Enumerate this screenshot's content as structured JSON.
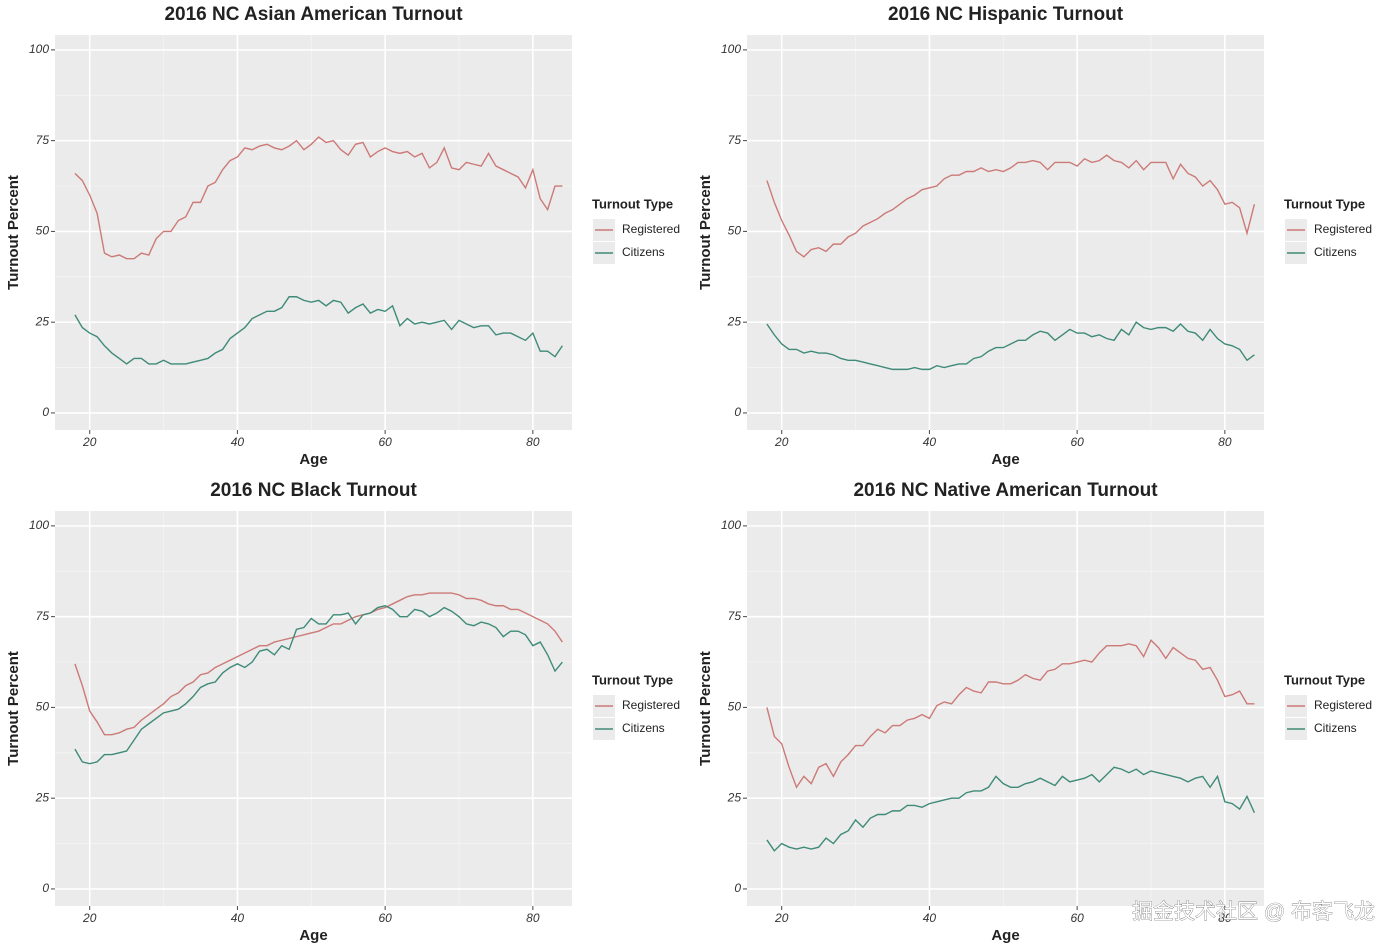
{
  "chart_data": [
    {
      "type": "line",
      "title": "2016 NC Asian American Turnout",
      "x_label": "Age",
      "y_label": "Turnout Percent",
      "legend_title": "Turnout Type",
      "xlim": [
        15.3,
        85.3
      ],
      "ylim": [
        -4.7,
        104.1
      ],
      "xticks": [
        20,
        40,
        60,
        80
      ],
      "yticks": [
        0,
        25,
        50,
        75,
        100
      ],
      "grid": true,
      "x": [
        18,
        19,
        20,
        21,
        22,
        23,
        24,
        25,
        26,
        27,
        28,
        29,
        30,
        31,
        32,
        33,
        34,
        35,
        36,
        37,
        38,
        39,
        40,
        41,
        42,
        43,
        44,
        45,
        46,
        47,
        48,
        49,
        50,
        51,
        52,
        53,
        54,
        55,
        56,
        57,
        58,
        59,
        60,
        61,
        62,
        63,
        64,
        65,
        66,
        67,
        68,
        69,
        70,
        71,
        72,
        73,
        74,
        75,
        76,
        77,
        78,
        79,
        80,
        81,
        82,
        83,
        84
      ],
      "series": [
        {
          "name": "Registered",
          "color": "#cc7a77",
          "values": [
            66,
            64,
            60,
            55,
            44,
            43,
            43.5,
            42.5,
            42.5,
            44,
            43.5,
            48,
            50,
            50,
            53,
            54,
            58,
            58,
            62.5,
            63.5,
            67,
            69.5,
            70.5,
            73,
            72.5,
            73.5,
            74,
            73,
            72.5,
            73.5,
            75,
            72.5,
            74,
            76,
            74.5,
            75,
            72.5,
            71,
            74,
            74.5,
            70.5,
            72,
            73,
            72,
            71.5,
            72,
            70.5,
            71.5,
            67.5,
            69,
            73,
            67.5,
            67,
            69,
            68.5,
            68,
            71.5,
            68,
            67,
            66,
            65,
            62,
            67,
            59,
            56,
            62.5,
            62.5
          ]
        },
        {
          "name": "Citizens",
          "color": "#3f8a78",
          "values": [
            27,
            23.5,
            22,
            21,
            18.5,
            16.5,
            15,
            13.5,
            15,
            15,
            13.5,
            13.5,
            14.5,
            13.5,
            13.5,
            13.5,
            14,
            14.5,
            15,
            16.5,
            17.5,
            20.5,
            22,
            23.5,
            26,
            27,
            28,
            28,
            29,
            32,
            32,
            31,
            30.5,
            31,
            29.5,
            31,
            30.5,
            27.5,
            29,
            30,
            27.5,
            28.5,
            28,
            29.5,
            24,
            26,
            24.5,
            25,
            24.5,
            25,
            25.5,
            23,
            25.5,
            24.5,
            23.5,
            24,
            24,
            21.5,
            22,
            22,
            21,
            20,
            22,
            17,
            17,
            15.5,
            18.5
          ]
        }
      ]
    },
    {
      "type": "line",
      "title": "2016 NC Hispanic Turnout",
      "x_label": "Age",
      "y_label": "Turnout Percent",
      "legend_title": "Turnout Type",
      "xlim": [
        15.3,
        85.3
      ],
      "ylim": [
        -4.7,
        104.1
      ],
      "xticks": [
        20,
        40,
        60,
        80
      ],
      "yticks": [
        0,
        25,
        50,
        75,
        100
      ],
      "grid": true,
      "x": [
        18,
        19,
        20,
        21,
        22,
        23,
        24,
        25,
        26,
        27,
        28,
        29,
        30,
        31,
        32,
        33,
        34,
        35,
        36,
        37,
        38,
        39,
        40,
        41,
        42,
        43,
        44,
        45,
        46,
        47,
        48,
        49,
        50,
        51,
        52,
        53,
        54,
        55,
        56,
        57,
        58,
        59,
        60,
        61,
        62,
        63,
        64,
        65,
        66,
        67,
        68,
        69,
        70,
        71,
        72,
        73,
        74,
        75,
        76,
        77,
        78,
        79,
        80,
        81,
        82,
        83,
        84
      ],
      "series": [
        {
          "name": "Registered",
          "color": "#cc7a77",
          "values": [
            64,
            58,
            53,
            49,
            44.5,
            43,
            45,
            45.5,
            44.5,
            46.5,
            46.5,
            48.5,
            49.5,
            51.5,
            52.5,
            53.5,
            55,
            56,
            57.5,
            59,
            60,
            61.5,
            62,
            62.5,
            64.5,
            65.5,
            65.5,
            66.5,
            66.5,
            67.5,
            66.5,
            67,
            66.5,
            67.5,
            69,
            69,
            69.5,
            69,
            67,
            69,
            69,
            69,
            68,
            70,
            69,
            69.5,
            71,
            69.5,
            69,
            67.5,
            69.5,
            67,
            69,
            69,
            69,
            64.5,
            68.5,
            66,
            65,
            62.5,
            64,
            61.5,
            57.5,
            58,
            56.5,
            49.5,
            57.5
          ]
        },
        {
          "name": "Citizens",
          "color": "#3f8a78",
          "values": [
            24.5,
            21.5,
            19,
            17.5,
            17.5,
            16.5,
            17,
            16.5,
            16.5,
            16,
            15,
            14.5,
            14.5,
            14,
            13.5,
            13,
            12.5,
            12,
            12,
            12,
            12.5,
            12,
            12,
            13,
            12.5,
            13,
            13.5,
            13.5,
            15,
            15.5,
            17,
            18,
            18,
            19,
            20,
            20,
            21.5,
            22.5,
            22,
            20,
            21.5,
            23,
            22,
            22,
            21,
            21.5,
            20.5,
            20,
            23,
            21.5,
            25,
            23.5,
            23,
            23.5,
            23.5,
            22.5,
            24.5,
            22.5,
            22,
            20,
            23,
            20.5,
            19,
            18.5,
            17.5,
            14.5,
            16
          ]
        }
      ]
    },
    {
      "type": "line",
      "title": "2016 NC Black Turnout",
      "x_label": "Age",
      "y_label": "Turnout Percent",
      "legend_title": "Turnout Type",
      "xlim": [
        15.3,
        85.3
      ],
      "ylim": [
        -4.7,
        104.1
      ],
      "xticks": [
        20,
        40,
        60,
        80
      ],
      "yticks": [
        0,
        25,
        50,
        75,
        100
      ],
      "grid": true,
      "x": [
        18,
        19,
        20,
        21,
        22,
        23,
        24,
        25,
        26,
        27,
        28,
        29,
        30,
        31,
        32,
        33,
        34,
        35,
        36,
        37,
        38,
        39,
        40,
        41,
        42,
        43,
        44,
        45,
        46,
        47,
        48,
        49,
        50,
        51,
        52,
        53,
        54,
        55,
        56,
        57,
        58,
        59,
        60,
        61,
        62,
        63,
        64,
        65,
        66,
        67,
        68,
        69,
        70,
        71,
        72,
        73,
        74,
        75,
        76,
        77,
        78,
        79,
        80,
        81,
        82,
        83,
        84
      ],
      "series": [
        {
          "name": "Registered",
          "color": "#cc7a77",
          "values": [
            62,
            56,
            49,
            46,
            42.5,
            42.5,
            43,
            44,
            44.5,
            46.5,
            48,
            49.5,
            51,
            53,
            54,
            56,
            57,
            59,
            59.5,
            61,
            62,
            63,
            64,
            65,
            66,
            67,
            67,
            68,
            68.5,
            69,
            69.5,
            70,
            70.5,
            71,
            72,
            73,
            73,
            74,
            75,
            75.5,
            76,
            77,
            77.5,
            78.5,
            79.5,
            80.5,
            81,
            81,
            81.5,
            81.5,
            81.5,
            81.5,
            81,
            80,
            80,
            79.5,
            78.5,
            78,
            78,
            77,
            77,
            76,
            75,
            74,
            73,
            71,
            68
          ]
        },
        {
          "name": "Citizens",
          "color": "#3f8a78",
          "values": [
            38.5,
            35,
            34.5,
            35,
            37,
            37,
            37.5,
            38,
            41,
            44,
            45.5,
            47,
            48.5,
            49,
            49.5,
            51,
            53,
            55.5,
            56.5,
            57,
            59.5,
            61,
            62,
            61,
            62.5,
            65.5,
            66,
            64.5,
            67,
            66,
            71.5,
            72,
            74.5,
            73,
            73,
            75.5,
            75.5,
            76,
            73,
            75.5,
            76,
            77.5,
            78,
            77,
            75,
            75,
            77,
            76.5,
            75,
            76,
            77.5,
            76.5,
            75,
            73,
            72.5,
            73.5,
            73,
            72,
            69.5,
            71,
            71,
            70,
            67,
            68,
            64.5,
            60,
            62.5
          ]
        }
      ]
    },
    {
      "type": "line",
      "title": "2016 NC Native American Turnout",
      "x_label": "Age",
      "y_label": "Turnout Percent",
      "legend_title": "Turnout Type",
      "xlim": [
        15.3,
        85.3
      ],
      "ylim": [
        -4.7,
        104.1
      ],
      "xticks": [
        20,
        40,
        60,
        80
      ],
      "yticks": [
        0,
        25,
        50,
        75,
        100
      ],
      "grid": true,
      "x": [
        18,
        19,
        20,
        21,
        22,
        23,
        24,
        25,
        26,
        27,
        28,
        29,
        30,
        31,
        32,
        33,
        34,
        35,
        36,
        37,
        38,
        39,
        40,
        41,
        42,
        43,
        44,
        45,
        46,
        47,
        48,
        49,
        50,
        51,
        52,
        53,
        54,
        55,
        56,
        57,
        58,
        59,
        60,
        61,
        62,
        63,
        64,
        65,
        66,
        67,
        68,
        69,
        70,
        71,
        72,
        73,
        74,
        75,
        76,
        77,
        78,
        79,
        80,
        81,
        82,
        83,
        84
      ],
      "series": [
        {
          "name": "Registered",
          "color": "#cc7a77",
          "values": [
            50,
            42,
            40,
            33.5,
            28,
            31,
            29,
            33.5,
            34.5,
            31,
            35,
            37,
            39.5,
            39.5,
            42,
            44,
            43,
            45,
            45,
            46.5,
            47,
            48,
            47,
            50.5,
            51.5,
            51,
            53.5,
            55.5,
            54.5,
            54,
            57,
            57,
            56.5,
            56.5,
            57.5,
            59,
            58,
            57.5,
            60,
            60.5,
            62,
            62,
            62.5,
            63,
            62.5,
            65,
            67,
            67,
            67,
            67.5,
            67,
            64,
            68.5,
            66.5,
            63.5,
            66.5,
            65,
            63.5,
            63,
            60.5,
            61,
            57.5,
            53,
            53.5,
            54.5,
            51,
            51
          ]
        },
        {
          "name": "Citizens",
          "color": "#3f8a78",
          "values": [
            13.5,
            10.5,
            12.5,
            11.5,
            11,
            11.5,
            11,
            11.5,
            14,
            12.5,
            15,
            16,
            19,
            17,
            19.5,
            20.5,
            20.5,
            21.5,
            21.5,
            23,
            23,
            22.5,
            23.5,
            24,
            24.5,
            25,
            25,
            26.5,
            27,
            27,
            28,
            31,
            29,
            28,
            28,
            29,
            29.5,
            30.5,
            29.5,
            28.5,
            31,
            29.5,
            30,
            30.5,
            31.5,
            29.5,
            31.5,
            33.5,
            33,
            32,
            33,
            31.5,
            32.5,
            32,
            31.5,
            31,
            30.5,
            29.5,
            30.5,
            31,
            28,
            31,
            24,
            23.5,
            22,
            25.5,
            21
          ]
        }
      ]
    }
  ],
  "watermark": "掘金技术社区 @ 布客飞龙"
}
